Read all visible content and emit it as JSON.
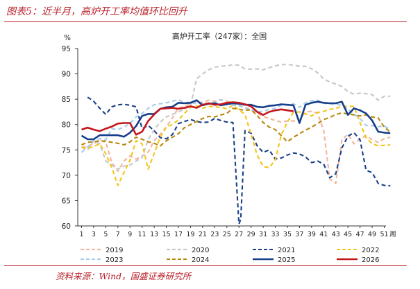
{
  "figure": {
    "title": "图表5：近半月，高炉开工率均值环比回升",
    "source": "资料来源：Wind，国盛证券研究所"
  },
  "chart_data": {
    "type": "line",
    "title": "高炉开工率（247家）：全国",
    "ylabel": "%",
    "xlabel": "周",
    "ylim": [
      60,
      95
    ],
    "yticks": [
      60,
      65,
      70,
      75,
      80,
      85,
      90,
      95
    ],
    "xlim": [
      1,
      53
    ],
    "xticks": [
      1,
      3,
      5,
      7,
      9,
      11,
      13,
      15,
      17,
      19,
      21,
      23,
      25,
      27,
      29,
      31,
      33,
      35,
      37,
      39,
      41,
      43,
      45,
      47,
      49,
      51
    ],
    "grid": false,
    "legend": "bottom",
    "series": [
      {
        "name": "2019",
        "color": "#f2b8a0",
        "dash": "dash-light",
        "width": 2.2,
        "x": [
          1,
          2,
          3,
          4,
          5,
          6,
          7,
          8,
          9,
          10,
          11,
          12,
          13,
          14,
          15,
          16,
          17,
          18,
          19,
          20,
          21,
          22,
          23,
          24,
          25,
          26,
          27,
          28,
          29,
          30,
          31,
          32,
          33,
          34,
          35,
          36,
          37,
          38,
          39,
          40,
          41,
          42,
          43,
          44,
          45,
          46,
          47,
          48,
          49,
          50,
          51,
          52
        ],
        "values": [
          75.5,
          75.7,
          76.2,
          76.9,
          76.5,
          72.5,
          70.8,
          72.8,
          73.8,
          73.2,
          73.8,
          74.6,
          76.8,
          78.1,
          79.5,
          81.3,
          83.3,
          83.5,
          84.2,
          84.4,
          84.4,
          84.8,
          84.6,
          84.9,
          84.6,
          84.2,
          83.7,
          83.4,
          82.9,
          82.3,
          81.6,
          81.2,
          80.8,
          80.5,
          80.7,
          80.7,
          80.9,
          82.5,
          82.6,
          82.2,
          78.8,
          69.3,
          68.4,
          77.0,
          78.1,
          76.2,
          77.2,
          77.8,
          77.0,
          76.5,
          77.2,
          77.5
        ]
      },
      {
        "name": "2020",
        "color": "#c9c9c9",
        "dash": "dash-light",
        "width": 2.2,
        "x": [
          1,
          2,
          3,
          4,
          5,
          6,
          7,
          8,
          9,
          10,
          11,
          12,
          13,
          14,
          15,
          16,
          17,
          18,
          19,
          20,
          21,
          22,
          23,
          24,
          25,
          26,
          27,
          28,
          29,
          30,
          31,
          32,
          33,
          34,
          35,
          36,
          37,
          38,
          39,
          40,
          41,
          42,
          43,
          44,
          45,
          46,
          47,
          48,
          49,
          50,
          51,
          52
        ],
        "values": [
          75.5,
          75.0,
          76.8,
          76.2,
          72.8,
          72.0,
          71.2,
          71.8,
          72.0,
          72.8,
          73.5,
          77.0,
          79.0,
          80.5,
          81.5,
          82.0,
          82.5,
          83.0,
          83.8,
          89.0,
          90.0,
          90.8,
          91.3,
          91.5,
          91.6,
          91.8,
          91.7,
          91.0,
          90.9,
          91.0,
          90.8,
          91.2,
          91.6,
          91.8,
          91.9,
          91.7,
          91.5,
          91.5,
          91.0,
          90.2,
          89.0,
          88.4,
          88.0,
          87.5,
          86.5,
          86.0,
          86.2,
          86.1,
          85.9,
          84.8,
          85.6,
          85.6
        ]
      },
      {
        "name": "2021",
        "color": "#173f87",
        "dash": "dash-heavy",
        "width": 2.1,
        "x": [
          2,
          3,
          4,
          5,
          6,
          7,
          8,
          9,
          10,
          11,
          12,
          13,
          14,
          15,
          16,
          17,
          18,
          19,
          20,
          21,
          22,
          23,
          24,
          25,
          26,
          27,
          27.3,
          28,
          29,
          30,
          31,
          32,
          33,
          34,
          35,
          36,
          37,
          38,
          39,
          40,
          41,
          42,
          43,
          44,
          45,
          46,
          47,
          48,
          49,
          50,
          51,
          52
        ],
        "values": [
          85.4,
          84.6,
          83.2,
          82.0,
          83.5,
          83.9,
          84.0,
          83.8,
          83.5,
          79.2,
          79.8,
          78.8,
          77.4,
          77.2,
          78.0,
          80.2,
          80.6,
          81.0,
          80.6,
          80.4,
          80.5,
          81.2,
          80.8,
          80.5,
          80.4,
          60.4,
          61.3,
          78.8,
          78.3,
          75.8,
          74.5,
          75.0,
          73.2,
          73.4,
          74.0,
          74.4,
          74.2,
          73.6,
          72.5,
          72.8,
          72.2,
          69.5,
          70.3,
          75.4,
          77.7,
          78.4,
          77.0,
          71.0,
          70.5,
          68.4,
          68.0,
          67.9
        ]
      },
      {
        "name": "2022",
        "color": "#f4c418",
        "dash": "dash-heavy",
        "width": 2.1,
        "x": [
          1,
          2,
          3,
          4,
          5,
          6,
          7,
          8,
          9,
          10,
          11,
          12,
          13,
          14,
          15,
          16,
          17,
          18,
          19,
          20,
          21,
          22,
          23,
          24,
          25,
          26,
          27,
          28,
          29,
          30,
          31,
          32,
          33,
          34,
          35,
          36,
          37,
          38,
          39,
          40,
          41,
          42,
          43,
          44,
          45,
          46,
          47,
          48,
          49,
          50,
          51,
          52
        ],
        "values": [
          75.5,
          75.3,
          75.7,
          76.2,
          74.2,
          71.5,
          68.0,
          70.5,
          73.0,
          76.8,
          76.2,
          71.2,
          74.3,
          77.5,
          79.5,
          80.0,
          80.9,
          82.2,
          83.4,
          83.7,
          83.2,
          83.6,
          83.5,
          83.4,
          83.1,
          83.8,
          82.9,
          82.0,
          78.0,
          74.0,
          71.7,
          71.5,
          73.0,
          78.0,
          80.5,
          82.4,
          82.5,
          82.1,
          81.7,
          82.4,
          82.6,
          83.0,
          83.2,
          83.6,
          83.6,
          83.6,
          80.4,
          77.4,
          76.2,
          75.8,
          75.9,
          76.0
        ]
      },
      {
        "name": "2023",
        "color": "#a9cdea",
        "dash": "dash-light",
        "width": 2.2,
        "x": [
          1,
          2,
          3,
          4,
          5,
          6,
          7,
          8,
          9,
          10,
          11,
          12,
          13,
          14,
          15,
          16,
          17,
          18,
          19,
          20,
          21,
          22,
          23,
          24,
          25,
          26,
          27,
          28,
          29,
          30,
          31,
          32,
          33,
          34,
          35,
          36,
          37,
          38,
          39,
          40,
          41,
          42,
          43,
          44,
          45,
          46,
          47,
          48,
          49,
          50,
          51,
          52
        ],
        "values": [
          74.5,
          75.6,
          76.8,
          77.2,
          77.0,
          79.2,
          79.0,
          79.5,
          80.2,
          81.5,
          82.2,
          83.2,
          83.9,
          84.1,
          84.3,
          84.6,
          84.9,
          84.3,
          84.4,
          84.1,
          84.2,
          84.2,
          84.3,
          84.9,
          84.3,
          83.8,
          83.7,
          83.2,
          83.0,
          82.5,
          82.6,
          83.0,
          83.2,
          83.8,
          83.9,
          84.1,
          83.4,
          84.3,
          84.7,
          84.8,
          84.2,
          84.1,
          84.0,
          83.8,
          83.0,
          82.1,
          81.2,
          79.8,
          79.8,
          79.6,
          79.7,
          79.0
        ]
      },
      {
        "name": "2024",
        "color": "#b8860b",
        "dash": "dash-heavy",
        "width": 2.1,
        "x": [
          1,
          2,
          3,
          4,
          5,
          6,
          7,
          8,
          9,
          10,
          11,
          12,
          13,
          14,
          15,
          16,
          17,
          18,
          19,
          20,
          21,
          22,
          23,
          24,
          25,
          26,
          27,
          28,
          29,
          30,
          31,
          32,
          33,
          34,
          35,
          36,
          37,
          38,
          39,
          40,
          41,
          42,
          43,
          44,
          45,
          46,
          47,
          48,
          49,
          50,
          51,
          52
        ],
        "values": [
          76.0,
          76.5,
          76.6,
          76.8,
          76.7,
          76.5,
          76.3,
          76.0,
          76.6,
          77.5,
          77.1,
          76.6,
          76.3,
          75.8,
          76.8,
          77.5,
          78.2,
          79.4,
          80.0,
          80.6,
          81.2,
          81.6,
          81.5,
          81.9,
          82.2,
          83.2,
          83.0,
          82.8,
          82.9,
          81.8,
          80.4,
          79.5,
          79.0,
          77.8,
          76.6,
          77.5,
          78.2,
          78.9,
          79.5,
          80.2,
          81.0,
          81.4,
          82.0,
          82.3,
          82.1,
          81.9,
          81.7,
          81.9,
          81.5,
          81.3,
          79.5,
          78.5
        ]
      },
      {
        "name": "2025",
        "color": "#163f8c",
        "dash": "solid",
        "width": 2.6,
        "x": [
          1,
          2,
          3,
          4,
          5,
          6,
          7,
          8,
          9,
          10,
          11,
          12,
          13,
          14,
          15,
          16,
          17,
          18,
          19,
          20,
          21,
          22,
          23,
          24,
          25,
          26,
          27,
          28,
          29,
          30,
          31,
          32,
          33,
          34,
          35,
          36,
          37,
          38,
          39,
          40,
          41,
          42,
          43,
          44,
          45,
          46,
          47,
          48,
          49,
          50,
          51,
          52
        ],
        "values": [
          77.8,
          77.1,
          77.1,
          77.9,
          77.9,
          77.9,
          77.9,
          77.6,
          78.4,
          79.7,
          81.7,
          82.1,
          82.1,
          83.1,
          83.4,
          83.5,
          84.3,
          84.2,
          84.3,
          84.8,
          83.8,
          84.1,
          84.2,
          83.8,
          84.0,
          84.2,
          84.1,
          83.9,
          83.9,
          83.5,
          83.4,
          83.7,
          83.8,
          84.0,
          83.9,
          83.8,
          80.3,
          83.9,
          84.3,
          84.5,
          84.3,
          84.2,
          84.2,
          84.5,
          81.9,
          83.2,
          82.8,
          82.2,
          80.8,
          78.6,
          78.4,
          78.3
        ]
      },
      {
        "name": "2026",
        "color": "#c3161c",
        "dash": "solid",
        "width": 2.6,
        "x": [
          1,
          2,
          3,
          4,
          5,
          6,
          7,
          8,
          9,
          10,
          11,
          12,
          13,
          14,
          15,
          16,
          17,
          18,
          19,
          20,
          21,
          22,
          23,
          24,
          25,
          26,
          27,
          28,
          29,
          30,
          31,
          32,
          33,
          34,
          35,
          36
        ],
        "values": [
          79.0,
          79.4,
          79.0,
          78.7,
          79.2,
          79.6,
          80.2,
          80.3,
          80.3,
          78.0,
          78.6,
          80.7,
          82.0,
          83.1,
          83.2,
          83.3,
          83.1,
          83.3,
          83.6,
          83.3,
          83.9,
          84.2,
          83.9,
          84.0,
          84.3,
          84.4,
          84.3,
          84.0,
          83.6,
          82.5,
          81.9,
          82.5,
          82.8,
          83.0,
          82.8,
          82.6
        ]
      }
    ]
  }
}
